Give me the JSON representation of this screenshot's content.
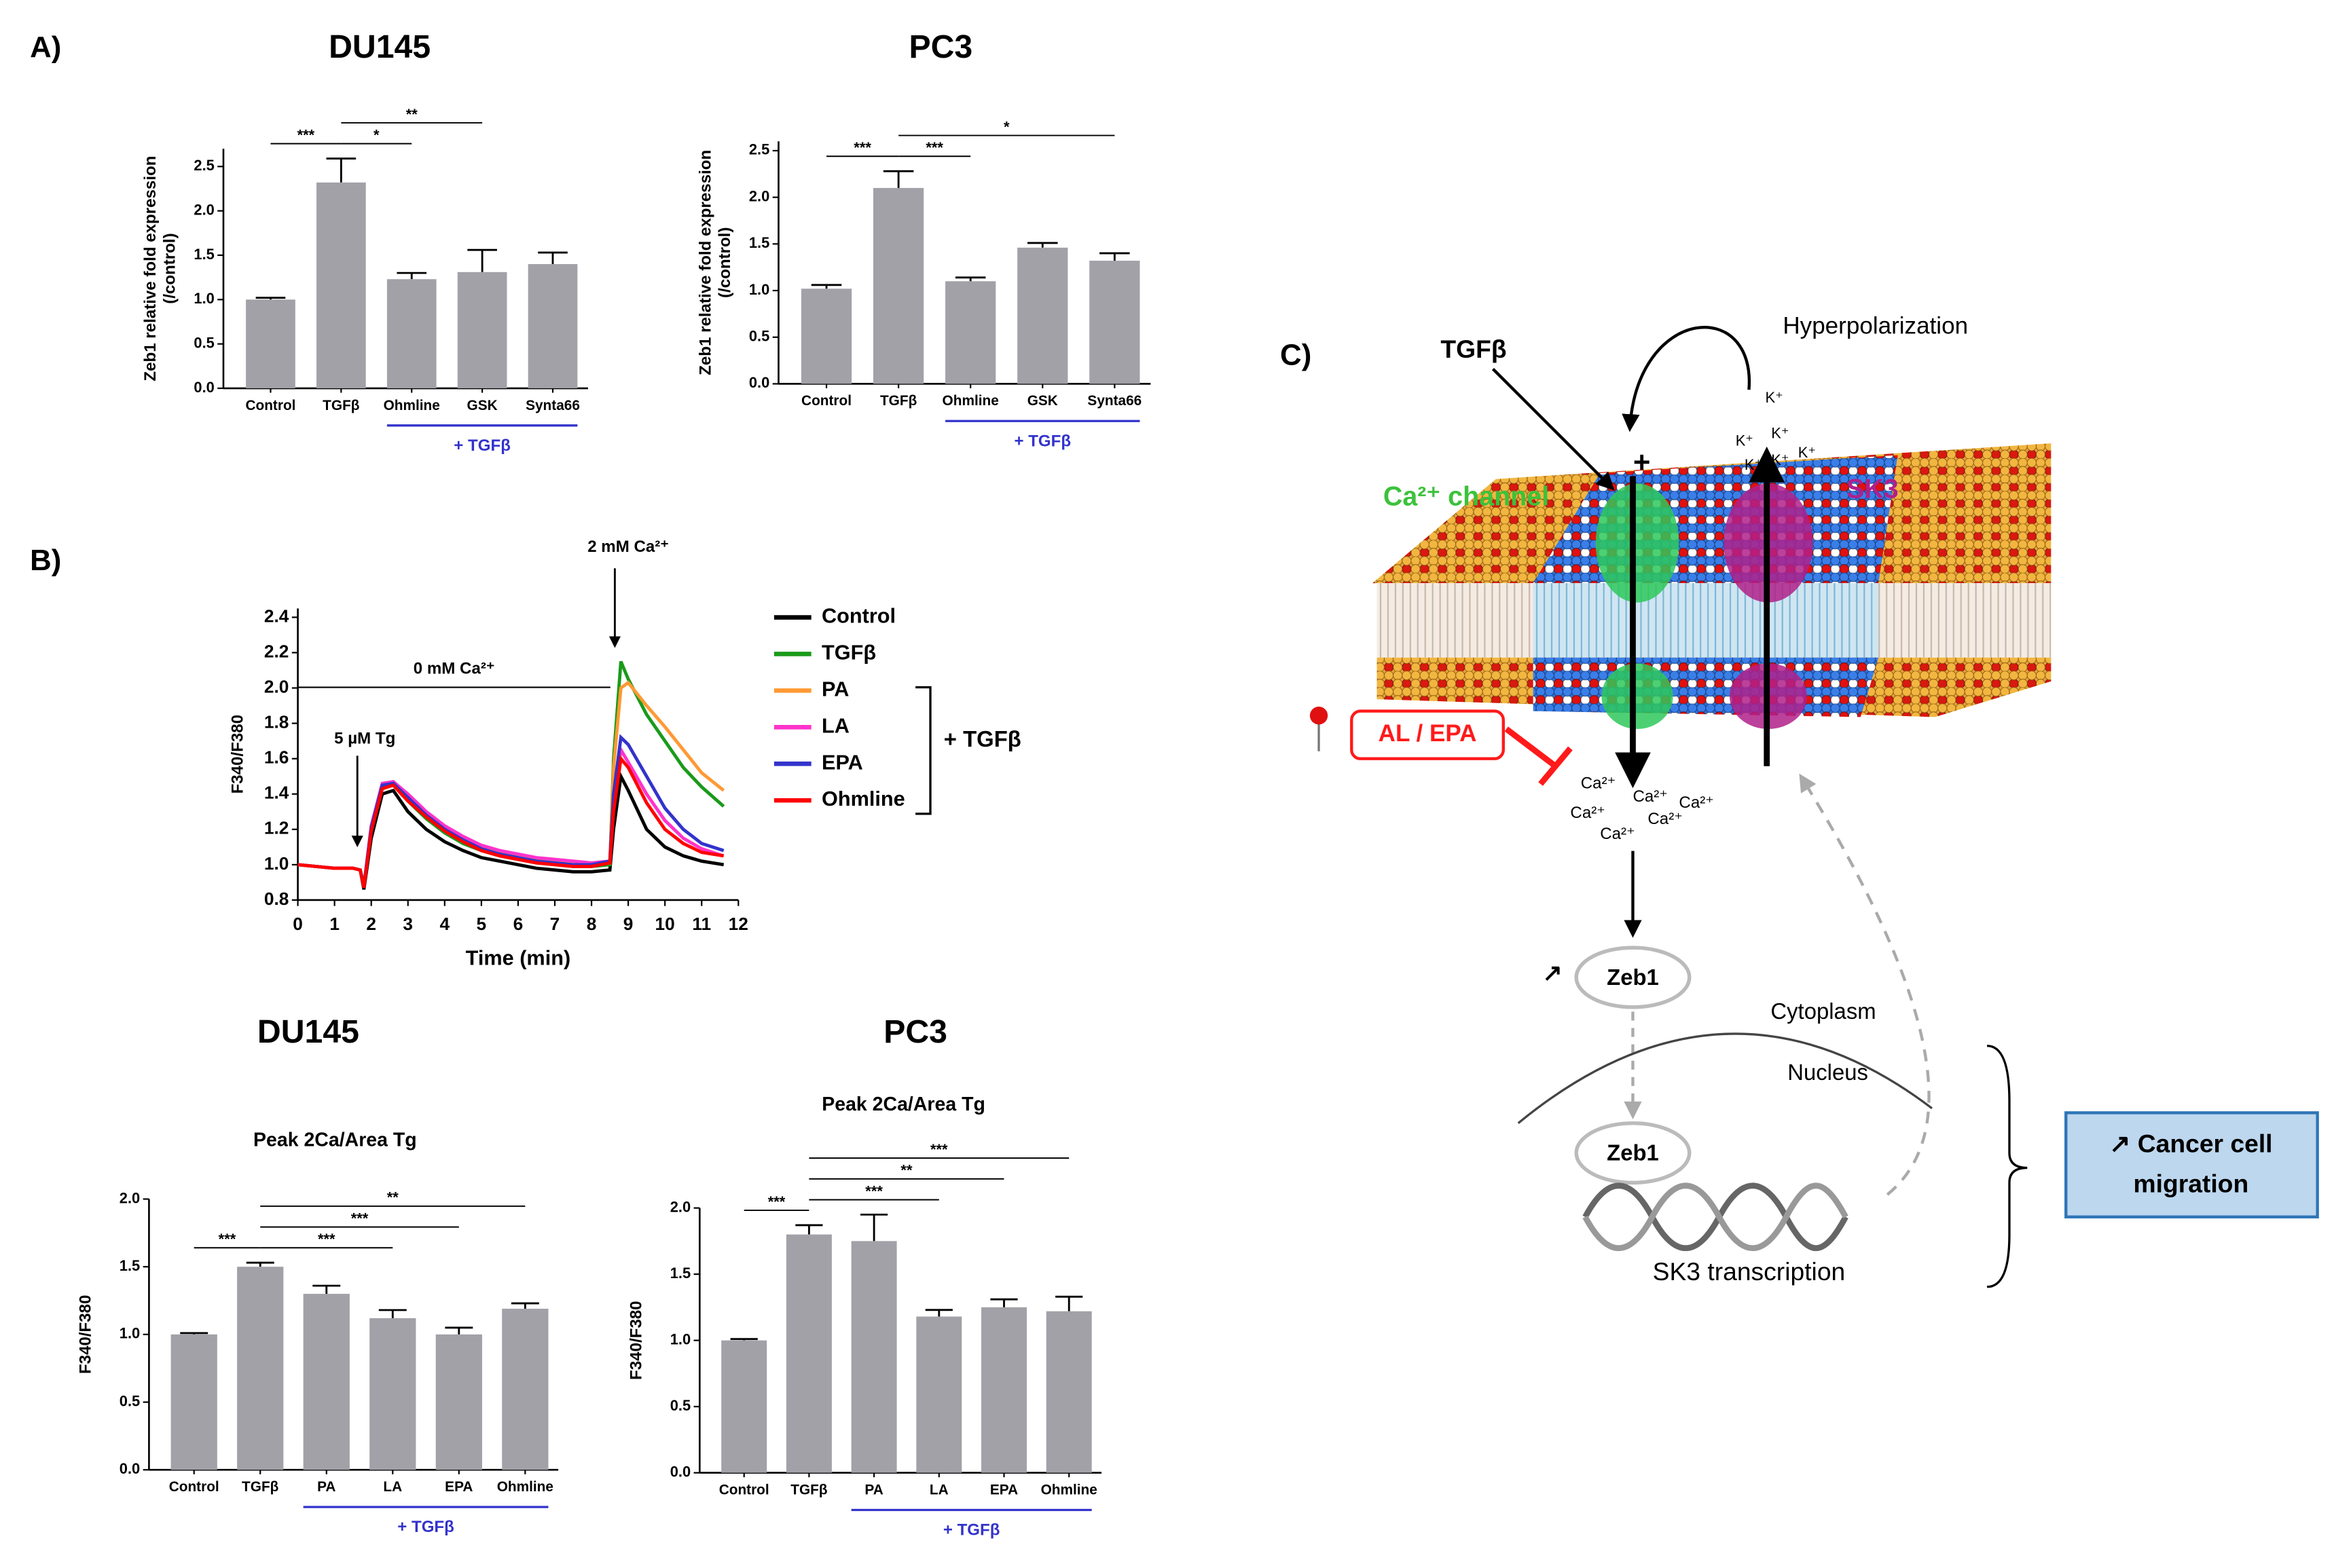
{
  "panel_labels": [
    "A)",
    "B)"
  ],
  "chart_data": [
    {
      "type": "bar",
      "title": "DU145",
      "ylabel": [
        "Zeb1 relative fold expression",
        "(/control)"
      ],
      "categories": [
        "Control",
        "TGFβ",
        "Ohmline",
        "GSK",
        "Synta66"
      ],
      "values": [
        1.0,
        2.32,
        1.23,
        1.31,
        1.4
      ],
      "errors": [
        0.02,
        0.27,
        0.07,
        0.25,
        0.13
      ],
      "color": "#a3a1a8",
      "ylim": [
        0,
        2.7
      ],
      "yticks": [
        {
          "value": 0,
          "label": "0.0"
        },
        {
          "value": 0.5,
          "label": "0.5"
        },
        {
          "value": 1,
          "label": "1.0"
        },
        {
          "value": 1.5,
          "label": "1.5"
        },
        {
          "value": 2,
          "label": "2.0"
        },
        {
          "value": 2.5,
          "label": "2.5"
        }
      ],
      "comparisons": [
        {
          "categories": [
            "Control",
            "TGFβ"
          ],
          "label": "***"
        },
        {
          "categories": [
            "TGFβ",
            "Ohmline"
          ],
          "label": "*"
        },
        {
          "categories": [
            "TGFβ",
            "GSK"
          ],
          "label": "**"
        }
      ],
      "group": {
        "label": "+ TGFβ",
        "categories": [
          "Ohmline",
          "Synta66"
        ],
        "color": "#3333cc"
      }
    },
    {
      "type": "bar",
      "title": "PC3",
      "ylabel": [
        "Zeb1 relative fold expression",
        "(/control)"
      ],
      "categories": [
        "Control",
        "TGFβ",
        "Ohmline",
        "GSK",
        "Synta66"
      ],
      "values": [
        1.02,
        2.1,
        1.1,
        1.46,
        1.32
      ],
      "errors": [
        0.04,
        0.18,
        0.04,
        0.05,
        0.08
      ],
      "color": "#a3a1a8",
      "ylim": [
        0,
        2.6
      ],
      "yticks": [
        {
          "value": 0,
          "label": "0.0"
        },
        {
          "value": 0.5,
          "label": "0.5"
        },
        {
          "value": 1,
          "label": "1.0"
        },
        {
          "value": 1.5,
          "label": "1.5"
        },
        {
          "value": 2,
          "label": "2.0"
        },
        {
          "value": 2.5,
          "label": "2.5"
        }
      ],
      "comparisons": [
        {
          "categories": [
            "Control",
            "TGFβ"
          ],
          "label": "***"
        },
        {
          "categories": [
            "TGFβ",
            "Ohmline"
          ],
          "label": "***"
        },
        {
          "categories": [
            "TGFβ",
            "Synta66"
          ],
          "label": "*"
        }
      ],
      "group": {
        "label": "+ TGFβ",
        "categories": [
          "Ohmline",
          "Synta66"
        ],
        "color": "#3333cc"
      }
    },
    {
      "type": "line",
      "ylabel": "F340/F380",
      "xlabel": "Time (min)",
      "x": [
        0,
        0.5,
        1,
        1.5,
        1.7,
        1.8,
        2,
        2.3,
        2.6,
        3,
        3.5,
        4,
        4.5,
        5,
        5.5,
        6,
        6.5,
        7,
        7.5,
        8,
        8.5,
        8.6,
        8.8,
        9,
        9.5,
        10,
        10.5,
        11,
        11.6
      ],
      "series": [
        {
          "name": "Control",
          "color": "#000000",
          "values": [
            1.0,
            0.99,
            0.98,
            0.98,
            0.97,
            0.86,
            1.15,
            1.4,
            1.42,
            1.3,
            1.2,
            1.13,
            1.08,
            1.04,
            1.02,
            1.0,
            0.98,
            0.97,
            0.96,
            0.96,
            0.97,
            1.2,
            1.5,
            1.42,
            1.2,
            1.1,
            1.05,
            1.02,
            1.0
          ]
        },
        {
          "name": "TGFβ",
          "color": "#1a9a1a",
          "values": [
            1.0,
            0.99,
            0.98,
            0.98,
            0.97,
            0.88,
            1.2,
            1.44,
            1.46,
            1.36,
            1.26,
            1.18,
            1.12,
            1.08,
            1.05,
            1.03,
            1.01,
            1.0,
            0.99,
            0.99,
            1.0,
            1.6,
            2.15,
            2.05,
            1.85,
            1.7,
            1.55,
            1.44,
            1.33
          ]
        },
        {
          "name": "PA",
          "color": "#ff9933",
          "values": [
            1.0,
            0.99,
            0.98,
            0.98,
            0.97,
            0.88,
            1.2,
            1.45,
            1.47,
            1.38,
            1.29,
            1.21,
            1.15,
            1.1,
            1.07,
            1.05,
            1.03,
            1.02,
            1.01,
            1.0,
            1.01,
            1.55,
            2.0,
            2.03,
            1.9,
            1.78,
            1.65,
            1.52,
            1.42
          ]
        },
        {
          "name": "LA",
          "color": "#ff33cc",
          "values": [
            1.0,
            0.99,
            0.98,
            0.98,
            0.97,
            0.88,
            1.22,
            1.46,
            1.47,
            1.4,
            1.3,
            1.22,
            1.16,
            1.11,
            1.08,
            1.06,
            1.04,
            1.03,
            1.02,
            1.01,
            1.02,
            1.35,
            1.65,
            1.58,
            1.4,
            1.25,
            1.15,
            1.09,
            1.05
          ]
        },
        {
          "name": "EPA",
          "color": "#3333cc",
          "values": [
            1.0,
            0.99,
            0.98,
            0.98,
            0.97,
            0.88,
            1.21,
            1.45,
            1.46,
            1.38,
            1.28,
            1.2,
            1.14,
            1.09,
            1.06,
            1.04,
            1.02,
            1.01,
            1.0,
            1.0,
            1.02,
            1.4,
            1.72,
            1.68,
            1.5,
            1.32,
            1.2,
            1.12,
            1.08
          ]
        },
        {
          "name": "Ohmline",
          "color": "#ff0000",
          "values": [
            1.0,
            0.99,
            0.98,
            0.98,
            0.97,
            0.87,
            1.19,
            1.43,
            1.45,
            1.36,
            1.27,
            1.19,
            1.13,
            1.08,
            1.05,
            1.03,
            1.01,
            1.0,
            0.99,
            0.99,
            1.01,
            1.3,
            1.6,
            1.55,
            1.35,
            1.2,
            1.12,
            1.07,
            1.05
          ]
        }
      ],
      "xlim": [
        0,
        12
      ],
      "ylim": [
        0.8,
        2.45
      ],
      "xticks": [
        0,
        1,
        2,
        3,
        4,
        5,
        6,
        7,
        8,
        9,
        10,
        11,
        12
      ],
      "yticks": [
        0.8,
        {
          "value": 1,
          "label": "1.0"
        },
        1.2,
        1.4,
        1.6,
        1.8,
        {
          "value": 2,
          "label": "2.0"
        },
        2.2,
        2.4
      ],
      "annotations": [
        "0 mM Ca²⁺",
        "5 µM Tg",
        "2 mM Ca²⁺"
      ],
      "legend_group": "+ TGFβ"
    },
    {
      "type": "bar",
      "title": "DU145",
      "subtitle": "Peak 2Ca/Area Tg",
      "ylabel": "F340/F380",
      "categories": [
        "Control",
        "TGFβ",
        "PA",
        "LA",
        "EPA",
        "Ohmline"
      ],
      "values": [
        1.0,
        1.5,
        1.3,
        1.12,
        1.0,
        1.19
      ],
      "errors": [
        0.01,
        0.03,
        0.06,
        0.06,
        0.05,
        0.04
      ],
      "color": "#a3a1a8",
      "ylim": [
        0,
        2
      ],
      "yticks": [
        {
          "value": 0,
          "label": "0.0"
        },
        {
          "value": 0.5,
          "label": "0.5"
        },
        {
          "value": 1,
          "label": "1.0"
        },
        {
          "value": 1.5,
          "label": "1.5"
        },
        {
          "value": 2,
          "label": "2.0"
        }
      ],
      "comparisons": [
        {
          "categories": [
            "Control",
            "TGFβ"
          ],
          "label": "***"
        },
        {
          "categories": [
            "TGFβ",
            "LA"
          ],
          "label": "***"
        },
        {
          "categories": [
            "TGFβ",
            "EPA"
          ],
          "label": "***"
        },
        {
          "categories": [
            "TGFβ",
            "Ohmline"
          ],
          "label": "**"
        }
      ],
      "group": {
        "label": "+ TGFβ",
        "categories": [
          "PA",
          "Ohmline"
        ],
        "color": "#3333cc"
      }
    },
    {
      "type": "bar",
      "title": "PC3",
      "subtitle": "Peak 2Ca/Area Tg",
      "ylabel": "F340/F380",
      "categories": [
        "Control",
        "TGFβ",
        "PA",
        "LA",
        "EPA",
        "Ohmline"
      ],
      "values": [
        1.0,
        1.8,
        1.75,
        1.18,
        1.25,
        1.22
      ],
      "errors": [
        0.01,
        0.07,
        0.2,
        0.05,
        0.06,
        0.11
      ],
      "color": "#a3a1a8",
      "ylim": [
        0,
        2
      ],
      "yticks": [
        {
          "value": 0,
          "label": "0.0"
        },
        {
          "value": 0.5,
          "label": "0.5"
        },
        {
          "value": 1,
          "label": "1.0"
        },
        {
          "value": 1.5,
          "label": "1.5"
        },
        {
          "value": 2,
          "label": "2.0"
        }
      ],
      "comparisons": [
        {
          "categories": [
            "Control",
            "TGFβ"
          ],
          "label": "***"
        },
        {
          "categories": [
            "TGFβ",
            "LA"
          ],
          "label": "***"
        },
        {
          "categories": [
            "TGFβ",
            "EPA"
          ],
          "label": "**"
        },
        {
          "categories": [
            "TGFβ",
            "Ohmline"
          ],
          "label": "***"
        }
      ],
      "group": {
        "label": "+ TGFβ",
        "categories": [
          "PA",
          "Ohmline"
        ],
        "color": "#3333cc"
      }
    }
  ],
  "diagram": {
    "panel_label": "C)",
    "tgfb": "TGFβ",
    "hyperpolarization": "Hyperpolarization",
    "plus": "+",
    "ca_channel": "Ca²⁺ channel",
    "sk3": "SK3",
    "k_ions": [
      "K⁺",
      "K⁺",
      "K⁺",
      "K⁺",
      "K⁺",
      "K⁺"
    ],
    "inhibitor": "AL / EPA",
    "ca_ions": [
      "Ca²⁺",
      "Ca²⁺",
      "Ca²⁺",
      "Ca²⁺",
      "Ca²⁺",
      "Ca²⁺"
    ],
    "zeb1_up": "↗",
    "zeb1": [
      "Zeb1",
      "Zeb1"
    ],
    "cytoplasm": "Cytoplasm",
    "nucleus": "Nucleus",
    "transcription": "SK3 transcription",
    "outcome": [
      "↗ Cancer cell",
      "migration"
    ]
  }
}
